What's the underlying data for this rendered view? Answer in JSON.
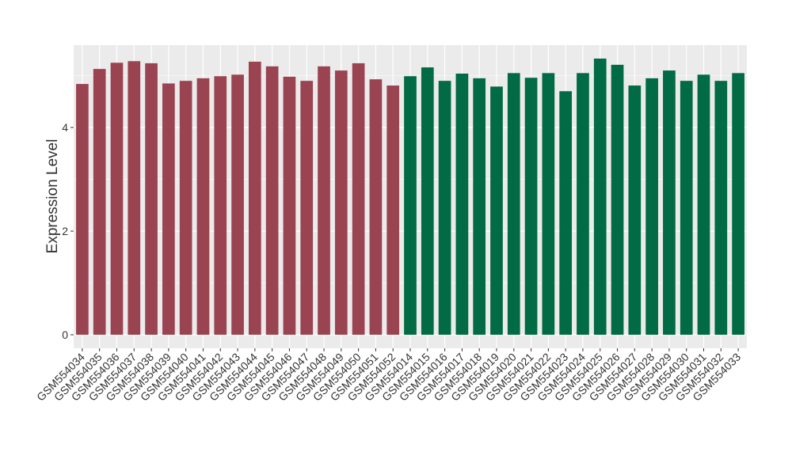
{
  "chart_data": {
    "type": "bar",
    "ylabel": "Expression Level",
    "categories": [
      "GSM554034",
      "GSM554035",
      "GSM554036",
      "GSM554037",
      "GSM554038",
      "GSM554039",
      "GSM554040",
      "GSM554041",
      "GSM554042",
      "GSM554043",
      "GSM554044",
      "GSM554045",
      "GSM554046",
      "GSM554047",
      "GSM554048",
      "GSM554049",
      "GSM554050",
      "GSM554051",
      "GSM554052",
      "GSM554014",
      "GSM554015",
      "GSM554016",
      "GSM554017",
      "GSM554018",
      "GSM554019",
      "GSM554020",
      "GSM554021",
      "GSM554022",
      "GSM554023",
      "GSM554024",
      "GSM554025",
      "GSM554026",
      "GSM554027",
      "GSM554028",
      "GSM554029",
      "GSM554030",
      "GSM554031",
      "GSM554032",
      "GSM554033"
    ],
    "values": [
      4.84,
      5.13,
      5.25,
      5.28,
      5.24,
      4.85,
      4.9,
      4.95,
      4.99,
      5.02,
      5.27,
      5.18,
      4.98,
      4.9,
      5.18,
      5.1,
      5.24,
      4.93,
      4.81,
      4.99,
      5.16,
      4.9,
      5.04,
      4.95,
      4.79,
      5.05,
      4.96,
      5.05,
      4.7,
      5.05,
      5.33,
      5.21,
      4.81,
      4.95,
      5.1,
      4.9,
      5.02,
      4.9,
      5.05
    ],
    "colors": [
      "#9b4451",
      "#9b4451",
      "#9b4451",
      "#9b4451",
      "#9b4451",
      "#9b4451",
      "#9b4451",
      "#9b4451",
      "#9b4451",
      "#9b4451",
      "#9b4451",
      "#9b4451",
      "#9b4451",
      "#9b4451",
      "#9b4451",
      "#9b4451",
      "#9b4451",
      "#9b4451",
      "#9b4451",
      "#006b44",
      "#006b44",
      "#006b44",
      "#006b44",
      "#006b44",
      "#006b44",
      "#006b44",
      "#006b44",
      "#006b44",
      "#006b44",
      "#006b44",
      "#006b44",
      "#006b44",
      "#006b44",
      "#006b44",
      "#006b44",
      "#006b44",
      "#006b44",
      "#006b44",
      "#006b44"
    ],
    "ylim": [
      -0.26,
      5.59
    ],
    "yticks": [
      0,
      2,
      4
    ],
    "minor_yticks": [
      1,
      3,
      5
    ],
    "grid": true
  }
}
